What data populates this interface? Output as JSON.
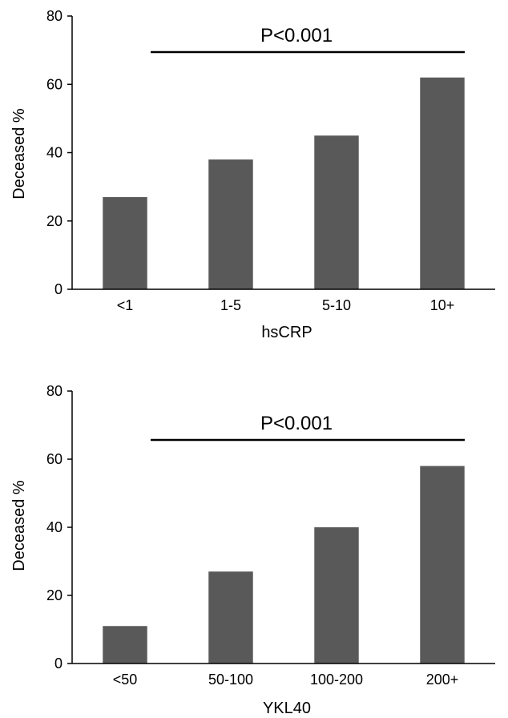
{
  "chart_data": [
    {
      "type": "bar",
      "categories": [
        "<1",
        "1-5",
        "5-10",
        "10+"
      ],
      "values": [
        27,
        38,
        45,
        62
      ],
      "title": "",
      "xlabel": "hsCRP",
      "ylabel": "Deceased %",
      "ylim": [
        0,
        80
      ],
      "yticks": [
        "0",
        "20",
        "40",
        "60",
        "80"
      ],
      "grid": false,
      "bar_color": "#595959",
      "annotation": "P<0.001"
    },
    {
      "type": "bar",
      "categories": [
        "<50",
        "50-100",
        "100-200",
        "200+"
      ],
      "values": [
        11,
        27,
        40,
        58
      ],
      "title": "",
      "xlabel": "YKL40",
      "ylabel": "Deceased %",
      "ylim": [
        0,
        80
      ],
      "yticks": [
        "0",
        "20",
        "40",
        "60",
        "80"
      ],
      "grid": false,
      "bar_color": "#595959",
      "annotation": "P<0.001"
    }
  ]
}
